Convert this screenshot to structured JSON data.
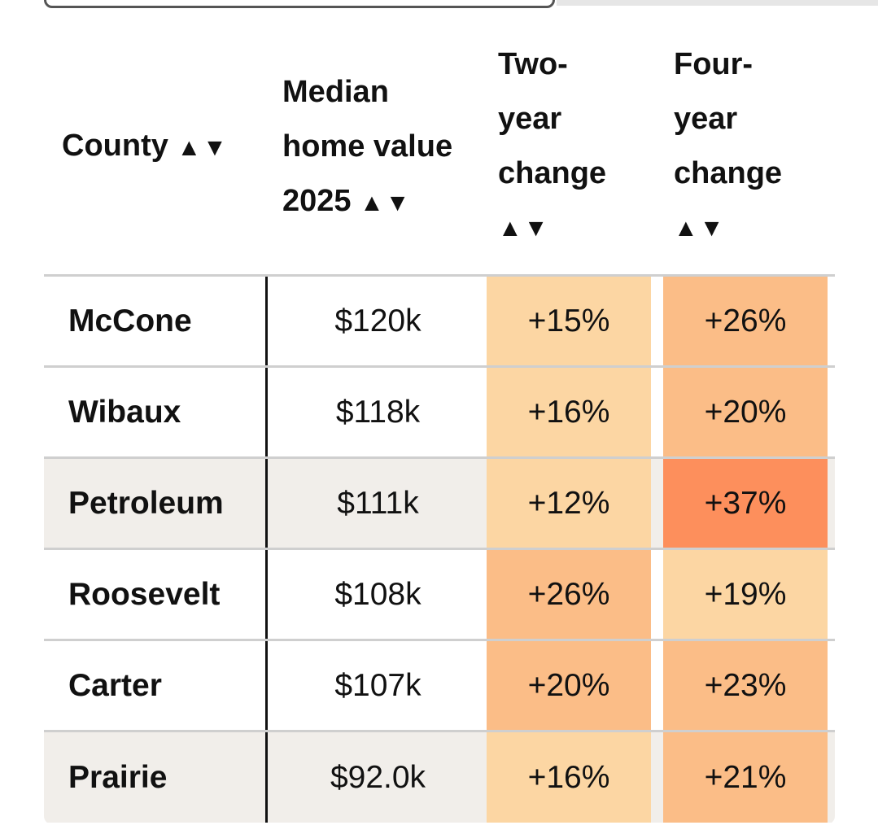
{
  "header": {
    "county": "County",
    "median_line1": "Median",
    "median_line2": "home value",
    "median_line3": "2025",
    "two_line1": "Two-",
    "two_line2": "year",
    "two_line3": "change",
    "four_line1": "Four-",
    "four_line2": "year",
    "four_line3": "change",
    "sort_arrows": "▲▼"
  },
  "colors": {
    "light": "#fcd6a3",
    "medium": "#fbbd87",
    "dark": "#fd8f5c",
    "shaded_row": "#f1eeea"
  },
  "rows": [
    {
      "county": "McCone",
      "median": "$120k",
      "two": "+15%",
      "four": "+26%",
      "two_color": "#fcd6a3",
      "four_color": "#fbbd87",
      "shaded": false
    },
    {
      "county": "Wibaux",
      "median": "$118k",
      "two": "+16%",
      "four": "+20%",
      "two_color": "#fcd6a3",
      "four_color": "#fbbd87",
      "shaded": false
    },
    {
      "county": "Petroleum",
      "median": "$111k",
      "two": "+12%",
      "four": "+37%",
      "two_color": "#fcd6a3",
      "four_color": "#fd8f5c",
      "shaded": true
    },
    {
      "county": "Roosevelt",
      "median": "$108k",
      "two": "+26%",
      "four": "+19%",
      "two_color": "#fbbd87",
      "four_color": "#fcd6a3",
      "shaded": false
    },
    {
      "county": "Carter",
      "median": "$107k",
      "two": "+20%",
      "four": "+23%",
      "two_color": "#fbbd87",
      "four_color": "#fbbd87",
      "shaded": false
    },
    {
      "county": "Prairie",
      "median": "$92.0k",
      "two": "+16%",
      "four": "+21%",
      "two_color": "#fcd6a3",
      "four_color": "#fbbd87",
      "shaded": true
    }
  ]
}
